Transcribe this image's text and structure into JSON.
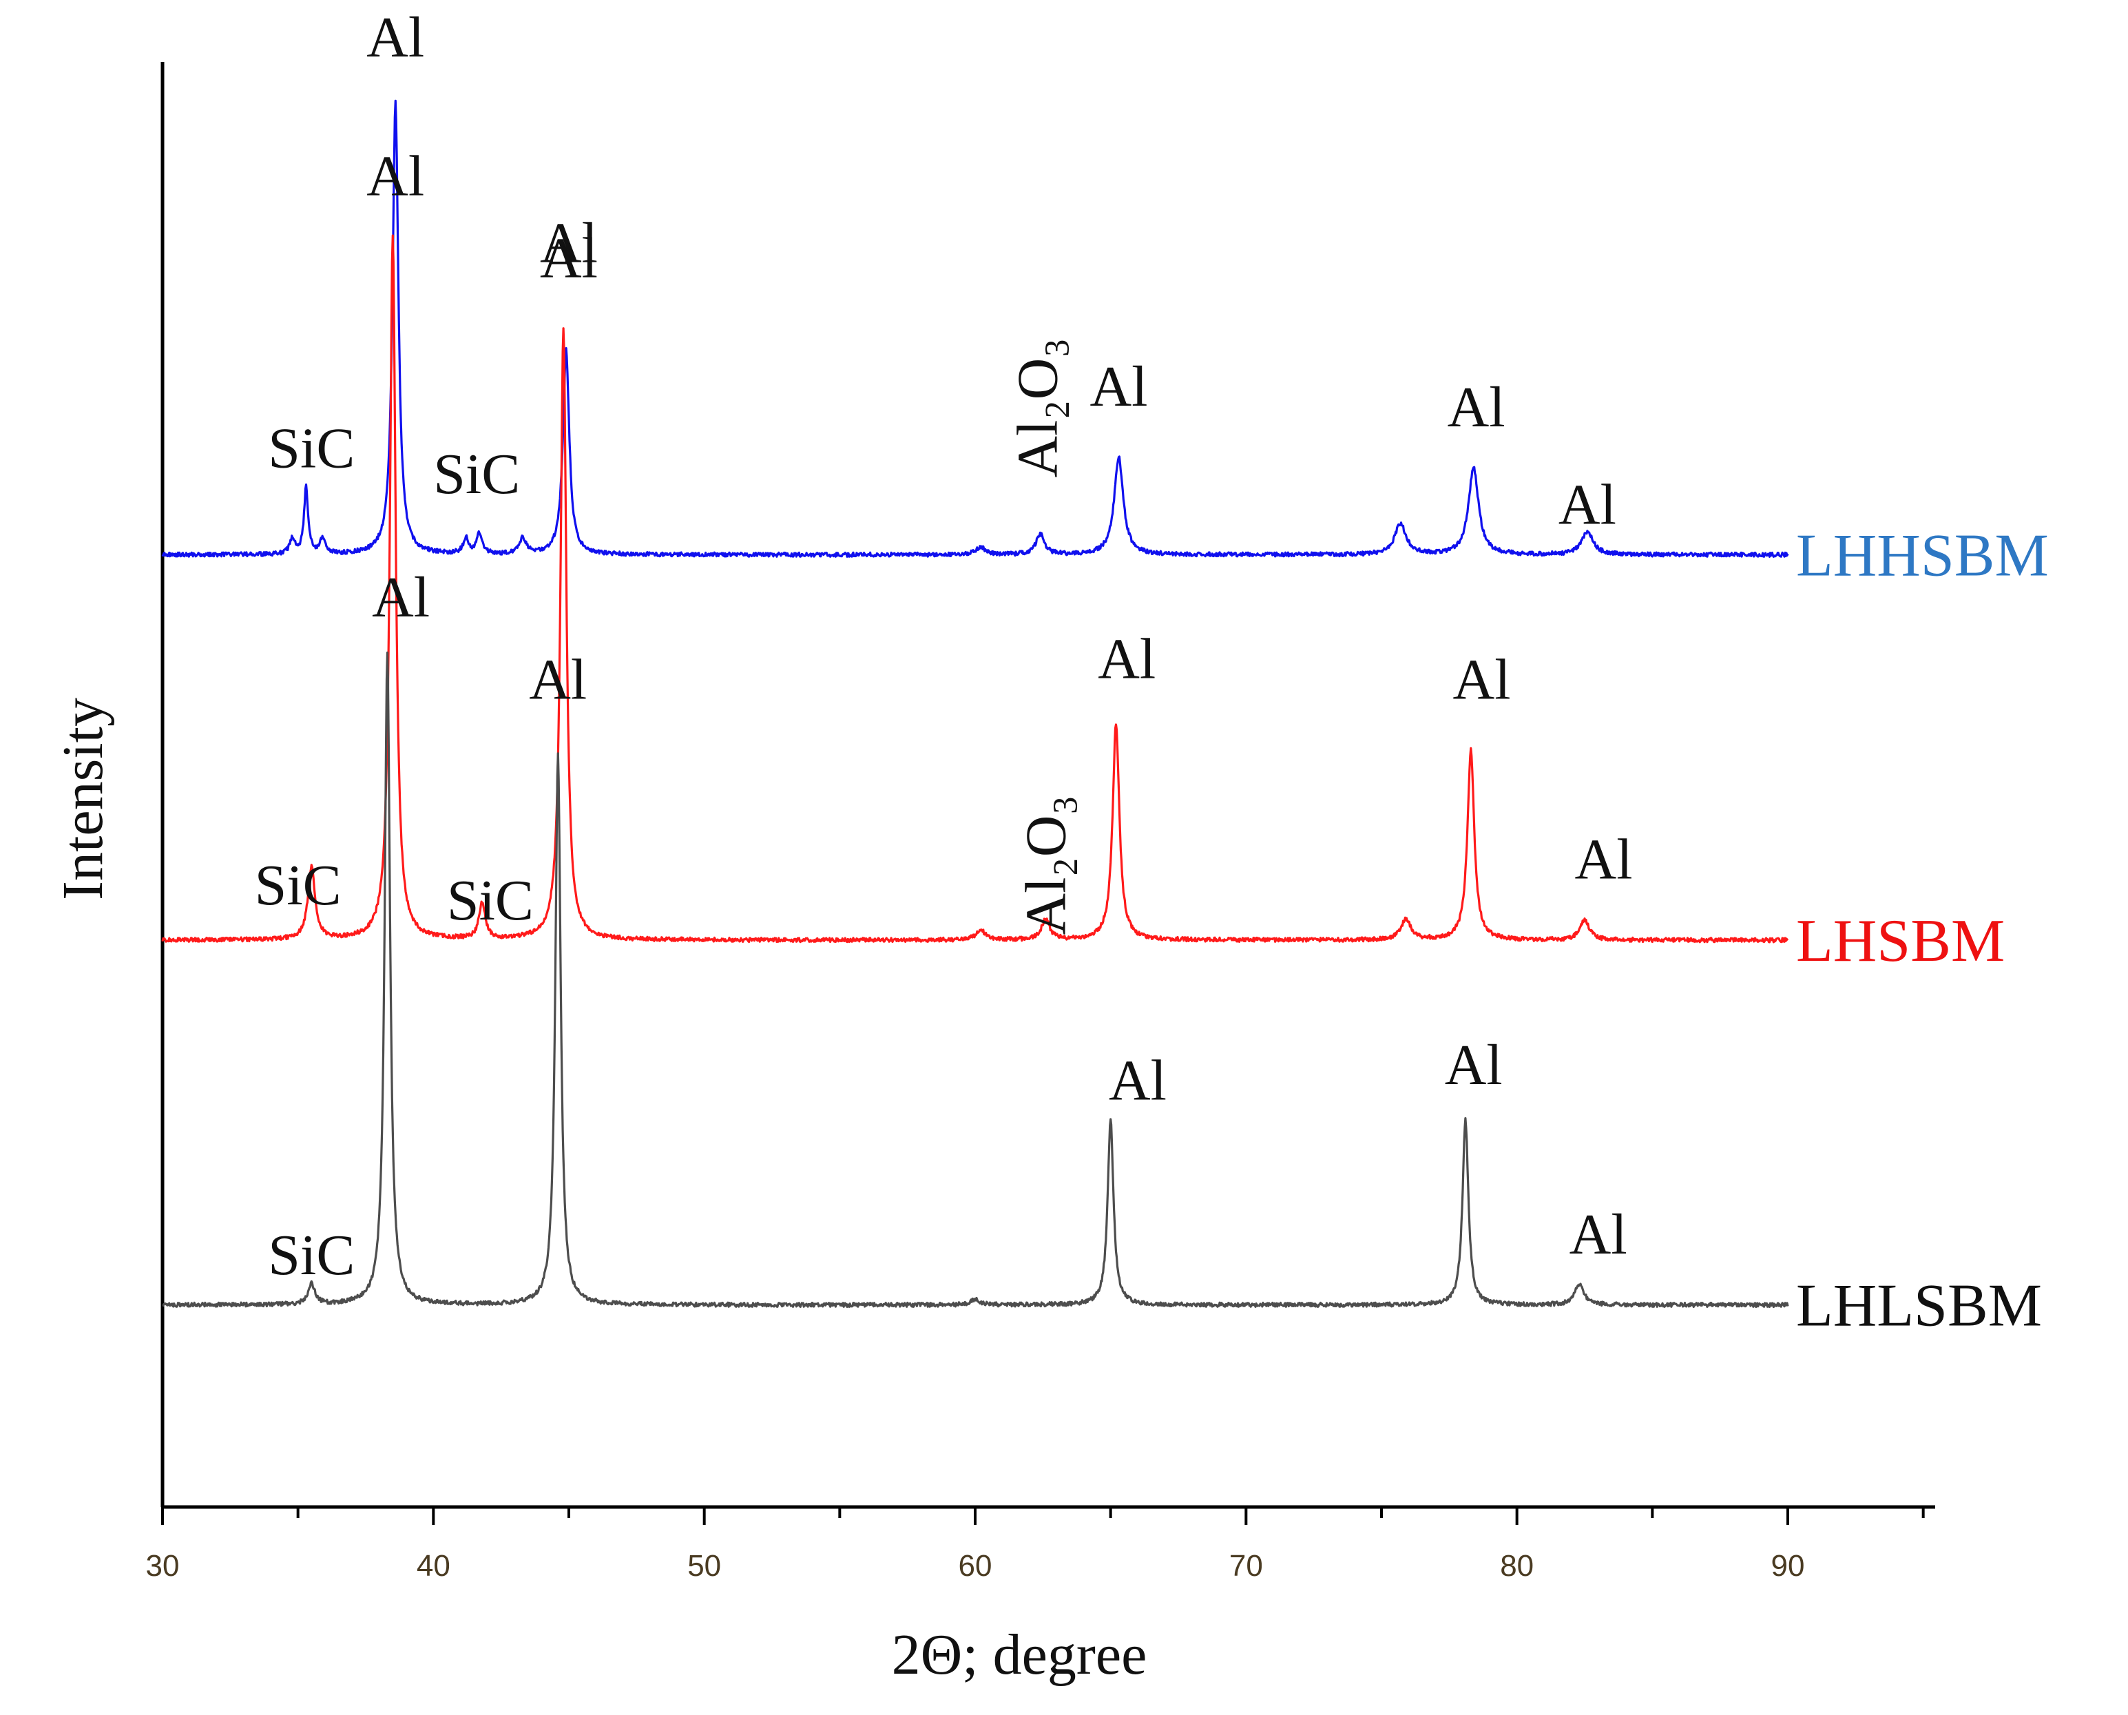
{
  "chart_data": {
    "type": "line",
    "title": "",
    "xlabel": "2Θ; degree",
    "ylabel": "Intensity",
    "xlim": [
      30,
      95
    ],
    "xticks": [
      30,
      40,
      50,
      60,
      70,
      80,
      90
    ],
    "yticks_shown": false,
    "grid": false,
    "series": [
      {
        "name": "LHHSBM",
        "color": "#1010ee",
        "label_color": "#2e78c4",
        "baseline": 0.75,
        "peaks": [
          {
            "x": 34.8,
            "h": 0.03,
            "w": 0.12
          },
          {
            "x": 35.3,
            "h": 0.13,
            "w": 0.09
          },
          {
            "x": 35.9,
            "h": 0.03,
            "w": 0.12
          },
          {
            "x": 38.6,
            "h": 0.88,
            "w": 0.13
          },
          {
            "x": 41.2,
            "h": 0.03,
            "w": 0.12
          },
          {
            "x": 41.7,
            "h": 0.04,
            "w": 0.12
          },
          {
            "x": 43.3,
            "h": 0.03,
            "w": 0.15
          },
          {
            "x": 44.9,
            "h": 0.4,
            "w": 0.14
          },
          {
            "x": 60.2,
            "h": 0.015,
            "w": 0.2
          },
          {
            "x": 62.4,
            "h": 0.04,
            "w": 0.18
          },
          {
            "x": 65.3,
            "h": 0.19,
            "w": 0.2
          },
          {
            "x": 75.7,
            "h": 0.06,
            "w": 0.25
          },
          {
            "x": 78.4,
            "h": 0.17,
            "w": 0.22
          },
          {
            "x": 82.6,
            "h": 0.045,
            "w": 0.25
          }
        ]
      },
      {
        "name": "LHSBM",
        "color": "#ff1a1a",
        "label_color": "#ee1111",
        "baseline": 0.0,
        "peaks": [
          {
            "x": 35.5,
            "h": 0.14,
            "w": 0.16
          },
          {
            "x": 38.5,
            "h": 1.37,
            "w": 0.13
          },
          {
            "x": 41.8,
            "h": 0.07,
            "w": 0.14
          },
          {
            "x": 44.8,
            "h": 1.19,
            "w": 0.13
          },
          {
            "x": 60.2,
            "h": 0.02,
            "w": 0.2
          },
          {
            "x": 62.6,
            "h": 0.04,
            "w": 0.18
          },
          {
            "x": 65.2,
            "h": 0.42,
            "w": 0.15
          },
          {
            "x": 75.9,
            "h": 0.04,
            "w": 0.22
          },
          {
            "x": 78.3,
            "h": 0.37,
            "w": 0.15
          },
          {
            "x": 82.5,
            "h": 0.04,
            "w": 0.2
          }
        ]
      },
      {
        "name": "LHLSBM",
        "color": "#4d4d4d",
        "label_color": "#111111",
        "baseline": -0.71,
        "peaks": [
          {
            "x": 35.5,
            "h": 0.04,
            "w": 0.15
          },
          {
            "x": 38.3,
            "h": 1.27,
            "w": 0.12
          },
          {
            "x": 44.6,
            "h": 1.07,
            "w": 0.12
          },
          {
            "x": 60.0,
            "h": 0.01,
            "w": 0.2
          },
          {
            "x": 65.0,
            "h": 0.36,
            "w": 0.13
          },
          {
            "x": 78.1,
            "h": 0.36,
            "w": 0.13
          },
          {
            "x": 82.3,
            "h": 0.04,
            "w": 0.2
          }
        ]
      }
    ],
    "annotations": [
      {
        "text": "Al",
        "x": 38.6,
        "y": 1.72
      },
      {
        "text": "SiC",
        "x": 35.5,
        "y": 0.92
      },
      {
        "text": "SiC",
        "x": 41.6,
        "y": 0.87
      },
      {
        "text": "Al",
        "x": 45.0,
        "y": 1.29
      },
      {
        "text": "Al₂O₃",
        "x": 62.3,
        "y": 0.9,
        "rotate": true
      },
      {
        "text": "Al",
        "x": 65.3,
        "y": 1.04
      },
      {
        "text": "Al",
        "x": 78.5,
        "y": 1.0
      },
      {
        "text": "Al",
        "x": 82.6,
        "y": 0.81
      },
      {
        "text": "Al",
        "x": 38.6,
        "y": 1.45
      },
      {
        "text": "SiC",
        "x": 35.0,
        "y": 0.07
      },
      {
        "text": "SiC",
        "x": 42.1,
        "y": 0.04
      },
      {
        "text": "Al",
        "x": 45.0,
        "y": 1.32
      },
      {
        "text": "Al₂O₃",
        "x": 62.6,
        "y": 0.01,
        "rotate": true
      },
      {
        "text": "Al",
        "x": 65.6,
        "y": 0.51
      },
      {
        "text": "Al",
        "x": 78.7,
        "y": 0.47
      },
      {
        "text": "Al",
        "x": 83.2,
        "y": 0.12
      },
      {
        "text": "Al",
        "x": 38.8,
        "y": 0.63
      },
      {
        "text": "SiC",
        "x": 35.5,
        "y": -0.65
      },
      {
        "text": "Al",
        "x": 44.6,
        "y": 0.47
      },
      {
        "text": "Al",
        "x": 66.0,
        "y": -0.31
      },
      {
        "text": "Al",
        "x": 78.4,
        "y": -0.28
      },
      {
        "text": "Al",
        "x": 83.0,
        "y": -0.61
      }
    ]
  }
}
